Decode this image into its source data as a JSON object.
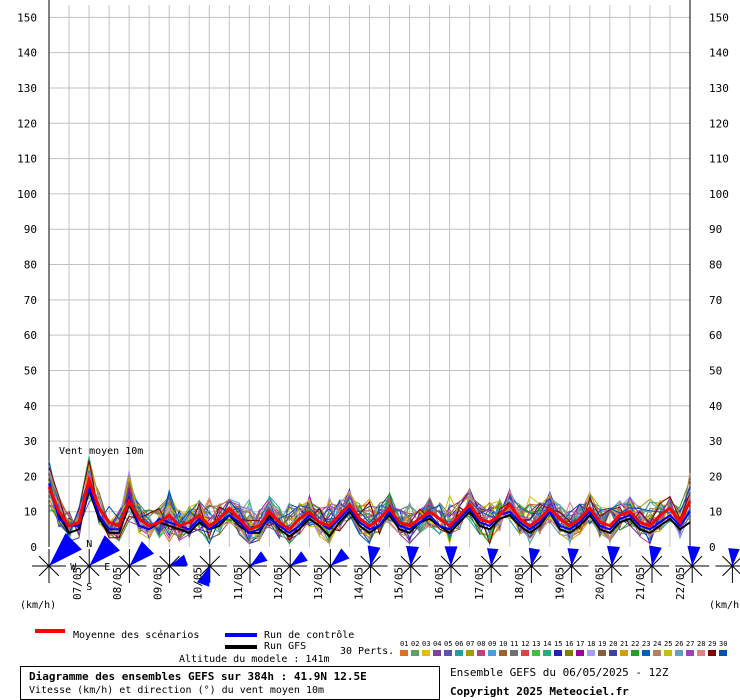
{
  "labels": {
    "series_label": "Vent moyen 10m",
    "unit_left": "(km/h)",
    "unit_right": "(km/h)",
    "legend_mean": "Moyenne des scénarios",
    "legend_control": "Run de contrôle",
    "legend_gfs": "Run GFS",
    "altitude": "Altitude du modele : 141m",
    "perts_label": "30 Perts.",
    "box_title": "Diagramme des ensembles GEFS sur 384h : 41.9N 12.5E",
    "box_subtitle": "Vitesse (km/h) et direction (°) du vent moyen 10m",
    "run_info": "Ensemble GEFS du 06/05/2025 - 12Z",
    "copyright": "Copyright 2025 Meteociel.fr",
    "compass_n": "N",
    "compass_s": "S",
    "compass_e": "E",
    "compass_w": "W"
  },
  "colors": {
    "mean": "#ff0000",
    "control": "#0000ff",
    "gfs": "#000000",
    "grid": "#c0c0c0",
    "rose": "#0000ff",
    "perts": [
      "#e07020",
      "#60a060",
      "#e0c000",
      "#8040a0",
      "#6050b0",
      "#20a0a0",
      "#a0a000",
      "#c04080",
      "#40a0e0",
      "#a06030",
      "#707070",
      "#e04040",
      "#40c040",
      "#20b080",
      "#2020c0",
      "#808000",
      "#a000a0",
      "#a0a0ff",
      "#806040",
      "#4040a0",
      "#d0a000",
      "#20a020",
      "#0060c0",
      "#b08060",
      "#c0c000",
      "#60a0c0",
      "#a040c0",
      "#e08080",
      "#800000",
      "#0050b0"
    ]
  },
  "chart_data": {
    "type": "line",
    "title": "Diagramme des ensembles GEFS sur 384h : 41.9N 12.5E",
    "subtitle": "Vitesse (km/h) et direction (°) du vent moyen 10m",
    "ylabel": "(km/h)",
    "ylim": [
      0,
      155
    ],
    "yticks": [
      0,
      10,
      20,
      30,
      40,
      50,
      60,
      70,
      80,
      90,
      100,
      110,
      120,
      130,
      140,
      150
    ],
    "xlabels": [
      "07/05",
      "08/05",
      "09/05",
      "10/05",
      "11/05",
      "12/05",
      "13/05",
      "14/05",
      "15/05",
      "16/05",
      "17/05",
      "18/05",
      "19/05",
      "20/05",
      "21/05",
      "22/05"
    ],
    "x_hours": [
      0,
      6,
      12,
      18,
      24,
      30,
      36,
      42,
      48,
      54,
      60,
      66,
      72,
      78,
      84,
      90,
      96,
      102,
      108,
      114,
      120,
      126,
      132,
      138,
      144,
      150,
      156,
      162,
      168,
      174,
      180,
      186,
      192,
      198,
      204,
      210,
      216,
      222,
      228,
      234,
      240,
      246,
      252,
      258,
      264,
      270,
      276,
      282,
      288,
      294,
      300,
      306,
      312,
      318,
      324,
      330,
      336,
      342,
      348,
      354,
      360,
      366,
      372,
      378,
      384
    ],
    "series": [
      {
        "name": "Moyenne des scénarios",
        "values": [
          17,
          10,
          6,
          7,
          19,
          11,
          7,
          6,
          13,
          8,
          6,
          7,
          9,
          6,
          7,
          9,
          6,
          8,
          11,
          8,
          5,
          6,
          10,
          7,
          5,
          8,
          10,
          7,
          6,
          9,
          12,
          8,
          6,
          8,
          11,
          7,
          6,
          8,
          10,
          8,
          6,
          9,
          12,
          8,
          7,
          9,
          12,
          8,
          6,
          8,
          11,
          8,
          6,
          8,
          11,
          7,
          6,
          9,
          10,
          7,
          6,
          9,
          11,
          7,
          13
        ]
      },
      {
        "name": "Run de contrôle",
        "values": [
          18,
          8,
          6,
          6,
          17,
          9,
          5,
          5,
          14,
          6,
          5,
          8,
          7,
          6,
          5,
          8,
          5,
          7,
          9,
          7,
          4,
          5,
          8,
          6,
          4,
          6,
          9,
          7,
          5,
          8,
          11,
          7,
          5,
          6,
          10,
          6,
          5,
          7,
          9,
          6,
          5,
          8,
          11,
          7,
          6,
          9,
          10,
          7,
          5,
          7,
          10,
          6,
          5,
          7,
          10,
          6,
          5,
          8,
          9,
          6,
          5,
          7,
          9,
          6,
          10
        ]
      },
      {
        "name": "Run GFS",
        "values": [
          17,
          9,
          4,
          5,
          16,
          8,
          4,
          4,
          12,
          6,
          5,
          7,
          6,
          5,
          4,
          7,
          5,
          6,
          9,
          6,
          4,
          4,
          9,
          5,
          3,
          5,
          8,
          6,
          3,
          7,
          10,
          6,
          4,
          6,
          9,
          5,
          4,
          7,
          8,
          6,
          4,
          7,
          10,
          6,
          5,
          8,
          9,
          6,
          4,
          6,
          10,
          5,
          4,
          6,
          9,
          5,
          4,
          7,
          8,
          5,
          4,
          6,
          8,
          5,
          7
        ]
      }
    ],
    "wind_rose": {
      "note": "direction roses every 12h",
      "dirs_deg": [
        225,
        225,
        225,
        250,
        20,
        235,
        235,
        230,
        190,
        185,
        180,
        185,
        190,
        185,
        185,
        190,
        185,
        185
      ],
      "speeds": [
        16,
        15,
        12,
        8,
        9,
        8,
        8,
        9,
        9,
        9,
        9,
        8,
        8,
        8,
        9,
        9,
        9,
        8
      ]
    }
  }
}
